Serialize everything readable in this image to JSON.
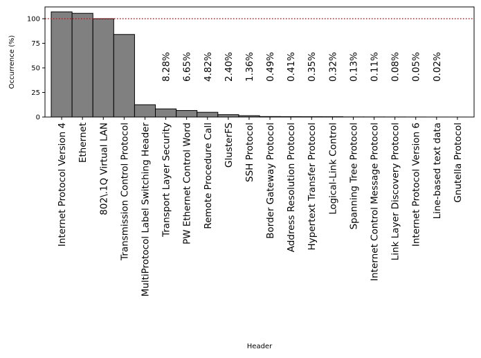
{
  "chart_data": {
    "type": "bar",
    "title": "",
    "xlabel": "Header",
    "ylabel": "Occurrence (%)",
    "ylim": [
      0,
      112
    ],
    "yticks": [
      0,
      25,
      50,
      75,
      100
    ],
    "grid": false,
    "bar_color": "#808080",
    "bar_edge_color": "#000000",
    "reference_line": {
      "y": 100,
      "color": "#ff0000",
      "style": "dotted"
    },
    "categories": [
      "Internet Protocol Version 4",
      "Ethernet",
      "802\\.1Q Virtual LAN",
      "Transmission Control Protocol",
      "MultiProtocol Label Switching Header",
      "Transport Layer Security",
      "PW Ethernet Control Word",
      "Remote Procedure Call",
      "GlusterFS",
      "SSH Protocol",
      "Border Gateway Protocol",
      "Address Resolution Protocol",
      "Hypertext Transfer Protocol",
      "Logical-Link Control",
      "Spanning Tree Protocol",
      "Internet Control Message Protocol",
      "Link Layer Discovery Protocol",
      "Internet Protocol Version 6",
      "Line-based text data",
      "Gnutella Protocol"
    ],
    "values": [
      107,
      105.5,
      100,
      84,
      12.5,
      8.28,
      6.65,
      4.82,
      2.4,
      1.36,
      0.49,
      0.41,
      0.35,
      0.32,
      0.13,
      0.11,
      0.08,
      0.05,
      0.02,
      0.01
    ],
    "data_labels": [
      "",
      "",
      "",
      "",
      "",
      "8.28%",
      "6.65%",
      "4.82%",
      "2.40%",
      "1.36%",
      "0.49%",
      "0.41%",
      "0.35%",
      "0.32%",
      "0.13%",
      "0.11%",
      "0.08%",
      "0.05%",
      "0.02%",
      ""
    ]
  }
}
